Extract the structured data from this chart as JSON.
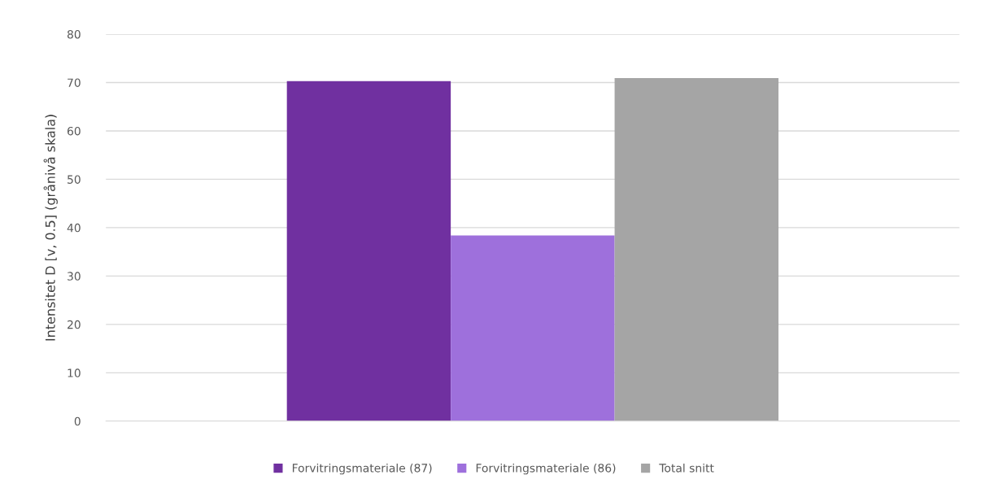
{
  "chart_data": {
    "type": "bar",
    "ylabel": "Intensitet D [v, 0.5] (grånivå skala)",
    "categories": [
      null
    ],
    "series": [
      {
        "name": "Forvitringsmateriale (87)",
        "color": "#7030a0",
        "values": [
          70.3
        ]
      },
      {
        "name": "Forvitringsmateriale (86)",
        "color": "#9e70dc",
        "values": [
          38.4
        ]
      },
      {
        "name": "Total snitt",
        "color": "#a5a5a5",
        "values": [
          70.9
        ]
      }
    ],
    "ylim": [
      0,
      80
    ],
    "yticks": [
      0,
      10,
      20,
      30,
      40,
      50,
      60,
      70,
      80
    ],
    "grid": "y",
    "legend": "bottom",
    "tick_labels": "y"
  }
}
